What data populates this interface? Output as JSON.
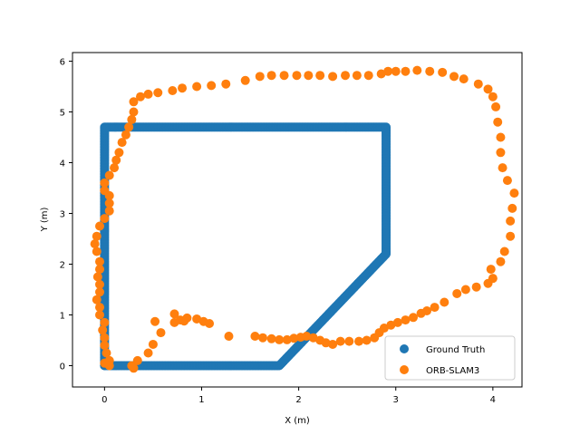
{
  "chart_data": {
    "type": "scatter",
    "title": "",
    "xlabel": "X (m)",
    "ylabel": "Y (m)",
    "xlim": [
      -0.33,
      4.3
    ],
    "ylim": [
      -0.42,
      6.17
    ],
    "xticks": [
      0,
      1,
      2,
      3,
      4
    ],
    "yticks": [
      0,
      1,
      2,
      3,
      4,
      5,
      6
    ],
    "grid": false,
    "legend_position": "lower-right",
    "series": [
      {
        "name": "Ground Truth",
        "color": "#1f77b4",
        "draw": "dense",
        "path": [
          [
            0,
            0
          ],
          [
            1.8,
            0
          ],
          [
            2.9,
            2.2
          ],
          [
            2.9,
            4.7
          ],
          [
            0,
            4.7
          ],
          [
            0,
            0
          ]
        ]
      },
      {
        "name": "ORB-SLAM3",
        "color": "#ff7f0e",
        "points": [
          [
            0.3,
            -0.05
          ],
          [
            0.28,
            0.0
          ],
          [
            0.34,
            0.1
          ],
          [
            0.45,
            0.25
          ],
          [
            0.5,
            0.42
          ],
          [
            0.58,
            0.65
          ],
          [
            0.52,
            0.87
          ],
          [
            0.72,
            1.02
          ],
          [
            0.78,
            0.9
          ],
          [
            0.85,
            0.94
          ],
          [
            0.95,
            0.92
          ],
          [
            1.02,
            0.87
          ],
          [
            1.08,
            0.83
          ],
          [
            0.72,
            0.85
          ],
          [
            0.82,
            0.88
          ],
          [
            1.28,
            0.58
          ],
          [
            1.55,
            0.58
          ],
          [
            1.63,
            0.55
          ],
          [
            1.72,
            0.53
          ],
          [
            1.8,
            0.51
          ],
          [
            1.88,
            0.51
          ],
          [
            1.95,
            0.54
          ],
          [
            2.02,
            0.56
          ],
          [
            2.08,
            0.58
          ],
          [
            2.15,
            0.55
          ],
          [
            2.22,
            0.5
          ],
          [
            2.28,
            0.45
          ],
          [
            2.35,
            0.42
          ],
          [
            2.43,
            0.48
          ],
          [
            2.52,
            0.48
          ],
          [
            2.62,
            0.48
          ],
          [
            2.7,
            0.5
          ],
          [
            2.78,
            0.55
          ],
          [
            2.83,
            0.65
          ],
          [
            2.88,
            0.74
          ],
          [
            2.95,
            0.8
          ],
          [
            3.02,
            0.85
          ],
          [
            3.1,
            0.9
          ],
          [
            3.18,
            0.95
          ],
          [
            3.26,
            1.03
          ],
          [
            3.32,
            1.08
          ],
          [
            3.4,
            1.15
          ],
          [
            3.5,
            1.25
          ],
          [
            3.63,
            1.42
          ],
          [
            3.72,
            1.5
          ],
          [
            3.83,
            1.55
          ],
          [
            3.95,
            1.62
          ],
          [
            4.0,
            1.72
          ],
          [
            3.98,
            1.9
          ],
          [
            4.08,
            2.05
          ],
          [
            4.12,
            2.25
          ],
          [
            4.18,
            2.55
          ],
          [
            4.18,
            2.85
          ],
          [
            4.2,
            3.1
          ],
          [
            4.22,
            3.4
          ],
          [
            4.15,
            3.65
          ],
          [
            4.1,
            3.9
          ],
          [
            4.08,
            4.2
          ],
          [
            4.08,
            4.5
          ],
          [
            4.05,
            4.8
          ],
          [
            4.03,
            5.1
          ],
          [
            4.0,
            5.3
          ],
          [
            3.95,
            5.45
          ],
          [
            3.85,
            5.55
          ],
          [
            3.7,
            5.65
          ],
          [
            3.6,
            5.7
          ],
          [
            3.48,
            5.78
          ],
          [
            3.35,
            5.8
          ],
          [
            3.22,
            5.82
          ],
          [
            3.1,
            5.8
          ],
          [
            3.0,
            5.8
          ],
          [
            2.92,
            5.8
          ],
          [
            2.85,
            5.75
          ],
          [
            2.72,
            5.72
          ],
          [
            2.6,
            5.72
          ],
          [
            2.48,
            5.72
          ],
          [
            2.35,
            5.7
          ],
          [
            2.22,
            5.72
          ],
          [
            2.1,
            5.72
          ],
          [
            1.98,
            5.72
          ],
          [
            1.85,
            5.72
          ],
          [
            1.72,
            5.72
          ],
          [
            1.6,
            5.7
          ],
          [
            1.45,
            5.62
          ],
          [
            1.25,
            5.55
          ],
          [
            1.1,
            5.52
          ],
          [
            0.95,
            5.5
          ],
          [
            0.8,
            5.47
          ],
          [
            0.7,
            5.42
          ],
          [
            0.55,
            5.38
          ],
          [
            0.45,
            5.35
          ],
          [
            0.37,
            5.3
          ],
          [
            0.3,
            5.2
          ],
          [
            0.3,
            5.0
          ],
          [
            0.28,
            4.85
          ],
          [
            0.25,
            4.7
          ],
          [
            0.22,
            4.55
          ],
          [
            0.18,
            4.4
          ],
          [
            0.15,
            4.2
          ],
          [
            0.12,
            4.05
          ],
          [
            0.1,
            3.9
          ],
          [
            0.05,
            3.75
          ],
          [
            0.0,
            3.6
          ],
          [
            0.0,
            3.45
          ],
          [
            0.05,
            3.35
          ],
          [
            0.05,
            3.2
          ],
          [
            0.05,
            3.05
          ],
          [
            0.0,
            2.9
          ],
          [
            -0.05,
            2.75
          ],
          [
            -0.08,
            2.55
          ],
          [
            -0.1,
            2.4
          ],
          [
            -0.08,
            2.25
          ],
          [
            -0.05,
            2.05
          ],
          [
            -0.05,
            1.9
          ],
          [
            -0.07,
            1.75
          ],
          [
            -0.05,
            1.6
          ],
          [
            -0.05,
            1.45
          ],
          [
            -0.08,
            1.3
          ],
          [
            -0.05,
            1.15
          ],
          [
            -0.05,
            1.0
          ],
          [
            0.0,
            0.85
          ],
          [
            -0.02,
            0.7
          ],
          [
            0.0,
            0.55
          ],
          [
            0.0,
            0.4
          ],
          [
            0.02,
            0.25
          ],
          [
            0.05,
            0.1
          ],
          [
            0.0,
            0.05
          ],
          [
            0.05,
            0.0
          ]
        ]
      }
    ]
  }
}
